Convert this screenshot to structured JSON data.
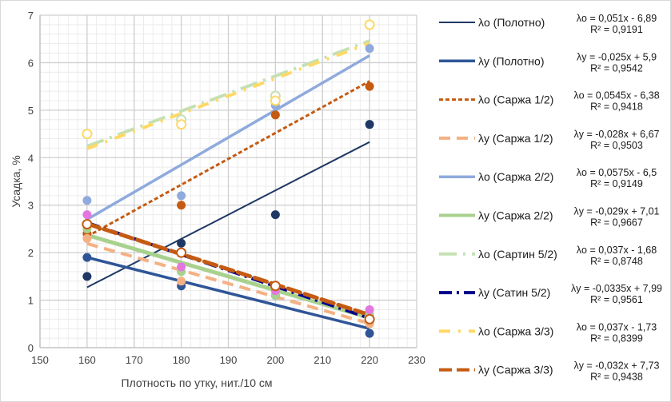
{
  "chart_data": {
    "type": "scatter",
    "title": "",
    "xlabel": "Плотность по утку, нит./10 см",
    "ylabel": "Усадка, %",
    "xlim": [
      150,
      230
    ],
    "ylim": [
      0,
      7
    ],
    "xticks": [
      "150",
      "160",
      "170",
      "180",
      "190",
      "200",
      "210",
      "220",
      "230"
    ],
    "yticks": [
      "0",
      "1",
      "2",
      "3",
      "4",
      "5",
      "6",
      "7"
    ],
    "grid": "major and minor",
    "legend_placement": "right",
    "x": [
      160,
      180,
      200,
      220
    ],
    "series": [
      {
        "name": "λo (Полотно)",
        "values": [
          1.5,
          2.2,
          2.8,
          4.7
        ],
        "slope": 0.051,
        "intercept": -6.89,
        "equation": "λo = 0,051x - 6,89",
        "r2": "R² = 0,9191",
        "color": "#1f3864",
        "marker": "#1f3864",
        "hollow": false,
        "dash": "",
        "width": 2
      },
      {
        "name": "λy (Полотно)",
        "values": [
          1.9,
          1.3,
          1.1,
          0.3
        ],
        "slope": -0.025,
        "intercept": 5.9,
        "equation": "λy = -0,025x + 5,9",
        "r2": "R² = 0,9542",
        "color": "#2f5597",
        "marker": "#2f5597",
        "hollow": false,
        "dash": "",
        "width": 3.5
      },
      {
        "name": "λo (Саржа 1/2)",
        "values": [
          2.4,
          3.0,
          4.9,
          5.5
        ],
        "slope": 0.0545,
        "intercept": -6.38,
        "equation": "λo = 0,0545x - 6,38",
        "r2": "R² = 0,9418",
        "color": "#c55a11",
        "marker": "#c55a11",
        "hollow": false,
        "dash": "5,3",
        "width": 3
      },
      {
        "name": "λy (Саржа 1/2)",
        "values": [
          2.3,
          1.4,
          1.2,
          0.5
        ],
        "slope": -0.028,
        "intercept": 6.67,
        "equation": "λy = -0,028x + 6,67",
        "r2": "R² = 0,9503",
        "color": "#f4b183",
        "marker": "#f4b183",
        "hollow": false,
        "dash": "14,8",
        "width": 4
      },
      {
        "name": "λo (Саржа 2/2)",
        "values": [
          3.1,
          3.2,
          5.1,
          6.3
        ],
        "slope": 0.0575,
        "intercept": -6.5,
        "equation": "λo = 0,0575x - 6,5",
        "r2": "R² = 0,9149",
        "color": "#8faadc",
        "marker": "#8faadc",
        "hollow": false,
        "dash": "",
        "width": 3.5
      },
      {
        "name": "λy (Саржа 2/2)",
        "values": [
          2.5,
          1.6,
          1.1,
          0.7
        ],
        "slope": -0.029,
        "intercept": 7.01,
        "equation": "λy = -0,029x + 7,01",
        "r2": "R² = 0,9667",
        "color": "#a9d18e",
        "marker": "#a9d18e",
        "hollow": false,
        "dash": "",
        "width": 5
      },
      {
        "name": "λo (Сартин 5/2)",
        "values": [
          4.5,
          4.8,
          5.3,
          6.8
        ],
        "slope": 0.037,
        "intercept": -1.68,
        "equation": "λo = 0,037x - 1,68",
        "r2": "R² = 0,8748",
        "color": "#c5e0b4",
        "marker": "#c5e0b4",
        "hollow": true,
        "dash": "22,8,3,8",
        "width": 4
      },
      {
        "name": "λy (Сатин 5/2)",
        "values": [
          2.8,
          1.7,
          1.2,
          0.8
        ],
        "slope": -0.0335,
        "intercept": 7.99,
        "equation": "λy = -0,0335x + 7,99",
        "r2": "R² = 0,9561",
        "color": "#00008b",
        "marker": "#e377e0",
        "hollow": false,
        "dash": "16,6,3,6",
        "width": 4
      },
      {
        "name": "λo (Саржа 3/3)",
        "values": [
          4.5,
          4.7,
          5.2,
          6.8
        ],
        "slope": 0.037,
        "intercept": -1.73,
        "equation": "λo = 0,037x - 1,73",
        "r2": "R² = 0,8399",
        "color": "#ffd966",
        "marker": "#ffd966",
        "hollow": true,
        "dash": "14,10,3,10",
        "width": 4
      },
      {
        "name": "λy (Саржа 3/3)",
        "values": [
          2.6,
          2.0,
          1.3,
          0.6
        ],
        "slope": -0.032,
        "intercept": 7.73,
        "equation": "λy = -0,032x + 7,73",
        "r2": "R² = 0,9438",
        "color": "#c55a11",
        "marker": "#c55a11",
        "hollow": true,
        "dash": "16,6",
        "width": 5
      }
    ]
  }
}
